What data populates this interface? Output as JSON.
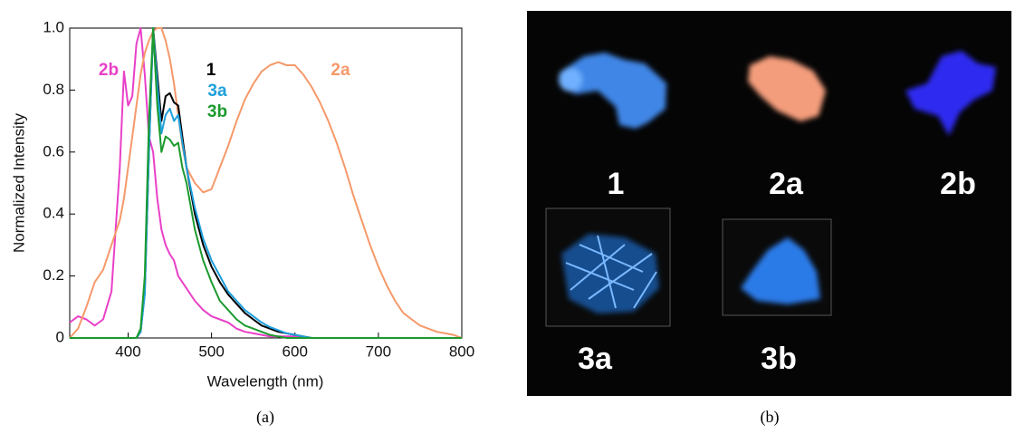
{
  "chart_data": {
    "type": "line",
    "xlabel": "Wavelength (nm)",
    "ylabel": "Normalized Intensity",
    "xlim": [
      330,
      800
    ],
    "xticks": [
      400,
      500,
      600,
      700,
      800
    ],
    "ylim": [
      0,
      1
    ],
    "yticks": [
      0,
      0.2,
      0.4,
      0.6,
      0.8,
      {
        "value": 1,
        "label": "1.0"
      }
    ],
    "x": [
      330,
      340,
      350,
      360,
      370,
      380,
      390,
      395,
      400,
      405,
      410,
      415,
      420,
      425,
      430,
      435,
      440,
      445,
      450,
      455,
      460,
      465,
      470,
      480,
      490,
      500,
      510,
      520,
      530,
      540,
      550,
      560,
      570,
      580,
      590,
      600,
      610,
      620,
      630,
      640,
      650,
      660,
      670,
      680,
      690,
      700,
      710,
      720,
      730,
      740,
      750,
      760,
      770,
      780,
      790,
      800
    ],
    "series": [
      {
        "name": "2b",
        "color": "#e940c8",
        "values": [
          0.05,
          0.07,
          0.06,
          0.04,
          0.06,
          0.15,
          0.55,
          0.86,
          0.75,
          0.78,
          0.95,
          1.0,
          0.85,
          0.65,
          0.6,
          0.45,
          0.35,
          0.3,
          0.27,
          0.25,
          0.2,
          0.18,
          0.16,
          0.12,
          0.09,
          0.07,
          0.06,
          0.05,
          0.03,
          0.02,
          0.015,
          0.01,
          0.005,
          0.005,
          0.005,
          0.005,
          0,
          0,
          0,
          0,
          0,
          0,
          0,
          0,
          0,
          0,
          0,
          0,
          0,
          0,
          0,
          0,
          0,
          0,
          0,
          0
        ]
      },
      {
        "name": "2a",
        "color": "#f5996a",
        "values": [
          0,
          0.03,
          0.1,
          0.18,
          0.22,
          0.3,
          0.38,
          0.45,
          0.55,
          0.65,
          0.75,
          0.85,
          0.92,
          0.96,
          0.99,
          1.0,
          1.0,
          0.96,
          0.9,
          0.82,
          0.72,
          0.62,
          0.55,
          0.5,
          0.47,
          0.48,
          0.55,
          0.62,
          0.7,
          0.77,
          0.82,
          0.86,
          0.88,
          0.89,
          0.88,
          0.88,
          0.85,
          0.81,
          0.76,
          0.7,
          0.63,
          0.55,
          0.46,
          0.38,
          0.3,
          0.23,
          0.17,
          0.12,
          0.08,
          0.06,
          0.04,
          0.03,
          0.02,
          0.015,
          0.01,
          0
        ]
      },
      {
        "name": "1",
        "color": "#000000",
        "values": [
          0,
          0,
          0,
          0,
          0,
          0,
          0,
          0,
          0,
          0,
          0,
          0.02,
          0.15,
          0.6,
          1.0,
          0.85,
          0.7,
          0.78,
          0.79,
          0.76,
          0.75,
          0.65,
          0.55,
          0.4,
          0.3,
          0.23,
          0.18,
          0.14,
          0.11,
          0.08,
          0.06,
          0.04,
          0.03,
          0.02,
          0.015,
          0.01,
          0.005,
          0,
          0,
          0,
          0,
          0,
          0,
          0,
          0,
          0,
          0,
          0,
          0,
          0,
          0,
          0,
          0,
          0,
          0,
          0
        ]
      },
      {
        "name": "3a",
        "color": "#1e9fdc",
        "values": [
          0,
          0,
          0,
          0,
          0,
          0,
          0,
          0,
          0,
          0,
          0,
          0.02,
          0.14,
          0.6,
          1.0,
          0.82,
          0.66,
          0.72,
          0.74,
          0.7,
          0.72,
          0.63,
          0.55,
          0.42,
          0.32,
          0.25,
          0.2,
          0.15,
          0.12,
          0.09,
          0.07,
          0.05,
          0.035,
          0.025,
          0.015,
          0.01,
          0.005,
          0,
          0,
          0,
          0,
          0,
          0,
          0,
          0,
          0,
          0,
          0,
          0,
          0,
          0,
          0,
          0,
          0,
          0,
          0
        ]
      },
      {
        "name": "3b",
        "color": "#1a9a2c",
        "values": [
          0,
          0,
          0,
          0,
          0,
          0,
          0,
          0,
          0,
          0,
          0,
          0.03,
          0.2,
          0.7,
          1.0,
          0.75,
          0.6,
          0.65,
          0.64,
          0.62,
          0.63,
          0.55,
          0.5,
          0.35,
          0.25,
          0.18,
          0.12,
          0.09,
          0.06,
          0.04,
          0.03,
          0.02,
          0.01,
          0.005,
          0,
          0,
          0,
          0,
          0,
          0,
          0,
          0,
          0,
          0,
          0,
          0,
          0,
          0,
          0,
          0,
          0,
          0,
          0,
          0,
          0,
          0
        ]
      }
    ]
  },
  "photo": {
    "labels": [
      "1",
      "2a",
      "2b",
      "3a",
      "3b"
    ]
  },
  "captions": [
    "(a)",
    "(b)"
  ]
}
